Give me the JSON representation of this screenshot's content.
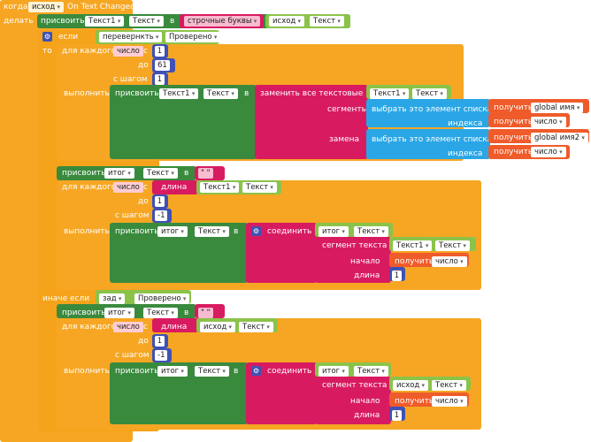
{
  "event": {
    "when": "когда",
    "component": "исход",
    "event_name": "On Text Changed",
    "do": "делать"
  },
  "top_set": {
    "set": "присвоить",
    "component": "Текст1",
    "prop": "Текст",
    "to": "в",
    "func": "строчные буквы",
    "src_component": "исход",
    "src_prop": "Текст"
  },
  "if_block": {
    "if": "если",
    "then": "то",
    "var": "перевернкть",
    "cmp": "Проверено",
    "else_if": "иначе если",
    "var2": "зад",
    "cmp2": "Проверено"
  },
  "loop1": {
    "for_each": "для каждого",
    "var": "число",
    "from": "с",
    "to": "до",
    "by": "с шагом",
    "do": "выполнить",
    "from_val": "1",
    "to_val": "61",
    "by_val": "1"
  },
  "replace_block": {
    "set": "присвоить",
    "component": "Текст1",
    "prop": "Текст",
    "to": "в",
    "replace_all": "заменить все текстовые",
    "src_component": "Текст1",
    "src_prop": "Текст",
    "segments": "сегменты",
    "select_item": "выбрать это элемент списка",
    "get": "получить",
    "list1": "global имя",
    "index": "индекса",
    "idx_var": "число",
    "replacement": "замена",
    "list2": "global имя2"
  },
  "block2": {
    "set": "присвоить",
    "var": "итог",
    "prop": "Текст",
    "to": "в",
    "empty_text": "\"  \"",
    "for_each": "для каждого",
    "loop_var": "число",
    "from": "с",
    "length": "длина",
    "len_component": "Текст1",
    "len_prop": "Текст",
    "to_label": "до",
    "to_val": "1",
    "by": "с шагом",
    "by_val": "-1",
    "do": "выполнить",
    "join_set": "присвоить",
    "join_var": "итог",
    "join_prop": "Текст",
    "join_to": "в",
    "join": "соединить",
    "join_a": "итог",
    "join_a_prop": "Текст",
    "segment": "сегмент текста",
    "seg_component": "Текст1",
    "seg_prop": "Текст",
    "start": "начало",
    "get": "получить",
    "get_var": "число",
    "length_lbl": "длина",
    "length_val": "1"
  },
  "block3": {
    "set": "присвоить",
    "var": "итог",
    "prop": "Текст",
    "to": "в",
    "empty_text": "\"  \"",
    "for_each": "для каждого",
    "loop_var": "число",
    "from": "с",
    "length": "длина",
    "len_component": "исход",
    "len_prop": "Текст",
    "to_label": "до",
    "to_val": "1",
    "by": "с шагом",
    "by_val": "-1",
    "do": "выполнить",
    "join_set": "присвоить",
    "join_var": "итог",
    "join_prop": "Текст",
    "join_to": "в",
    "join": "соединить",
    "join_a": "итог",
    "join_a_prop": "Текст",
    "segment": "сегмент текста",
    "seg_component": "исход",
    "seg_prop": "Текст",
    "start": "начало",
    "get": "получить",
    "get_var": "число",
    "length_lbl": "длина",
    "length_val": "1"
  }
}
